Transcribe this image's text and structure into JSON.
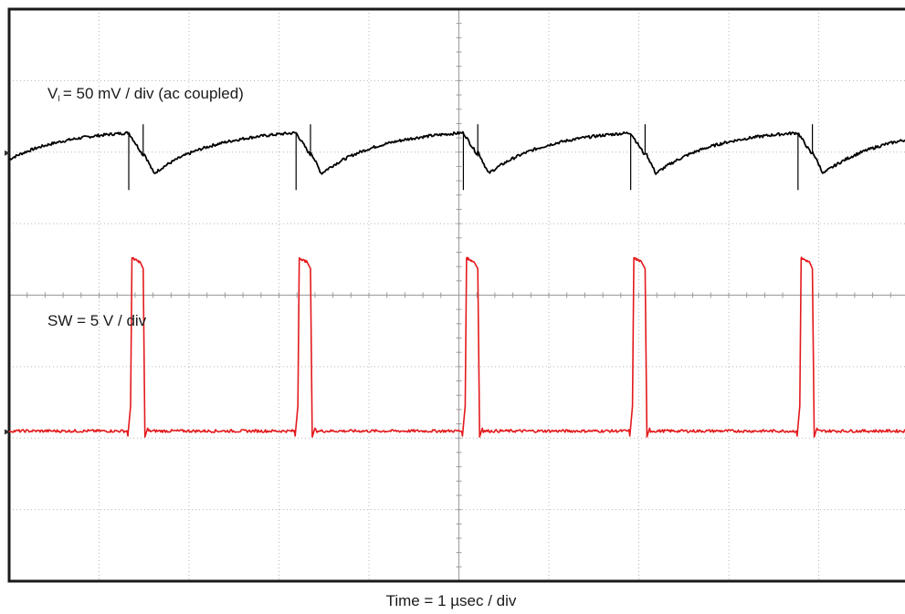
{
  "chart_data": {
    "type": "line",
    "title": "",
    "xlabel": "Time = 1 µsec / div",
    "ylabel": "",
    "xlim": [
      0,
      10
    ],
    "ylim": [
      -4,
      4
    ],
    "grid": true,
    "divisions": {
      "x": 10,
      "y": 8
    },
    "annotations": {
      "ch1": {
        "prefix": "V",
        "subscript": "I",
        "suffix": "= 50 mV / div (ac coupled)"
      },
      "ch2": {
        "text": "SW = 5 V / div"
      }
    },
    "switching_period_us": 1.86,
    "pulse_width_us": 0.16,
    "pulse_edges_us": [
      1.33,
      3.19,
      5.05,
      6.91,
      8.77
    ],
    "series": [
      {
        "channel": "ch1",
        "color": "#000000",
        "offset_div": 2.0,
        "valley_div": -0.3,
        "peak_div": 0.27,
        "spike_down_div": -0.45,
        "spike_up_div": 0.27
      },
      {
        "channel": "ch2",
        "color": "#e31a1c",
        "baseline_div": -1.9,
        "high_div": 0.52,
        "droop_div": 0.35,
        "undershoot_div": -0.07,
        "overshoot_div": 0.04
      }
    ]
  }
}
